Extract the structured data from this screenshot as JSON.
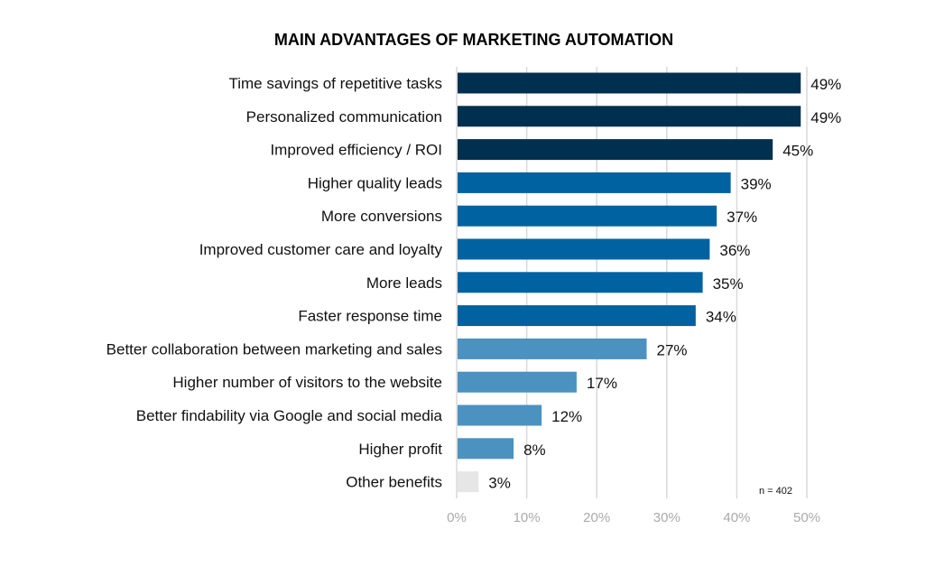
{
  "chart_data": {
    "type": "bar",
    "orientation": "horizontal",
    "title": "MAIN ADVANTAGES OF MARKETING AUTOMATION",
    "categories": [
      "Time savings of repetitive tasks",
      "Personalized communication",
      "Improved efficiency / ROI",
      "Higher quality leads",
      "More conversions",
      "Improved customer care and loyalty",
      "More leads",
      "Faster response time",
      "Better collaboration between marketing and sales",
      "Higher number of visitors to the website",
      "Better findability via Google and social media",
      "Higher profit",
      "Other benefits"
    ],
    "values": [
      49,
      49,
      45,
      39,
      37,
      36,
      35,
      34,
      27,
      17,
      12,
      8,
      3
    ],
    "value_labels": [
      "49%",
      "49%",
      "45%",
      "39%",
      "37%",
      "36%",
      "35%",
      "34%",
      "27%",
      "17%",
      "12%",
      "8%",
      "3%"
    ],
    "bar_colors": [
      "#00304f",
      "#00304f",
      "#00304f",
      "#0062a1",
      "#0062a1",
      "#0062a1",
      "#0062a1",
      "#0062a1",
      "#4b92c1",
      "#4b92c1",
      "#4b92c1",
      "#4b92c1",
      "#e6e6e6"
    ],
    "xlim": [
      0,
      50
    ],
    "x_ticks": [
      "0%",
      "10%",
      "20%",
      "30%",
      "40%",
      "50%"
    ],
    "x_tick_values": [
      0,
      10,
      20,
      30,
      40,
      50
    ],
    "grid": "vertical",
    "xlabel": "",
    "ylabel": "",
    "annotation": "n = 402"
  }
}
